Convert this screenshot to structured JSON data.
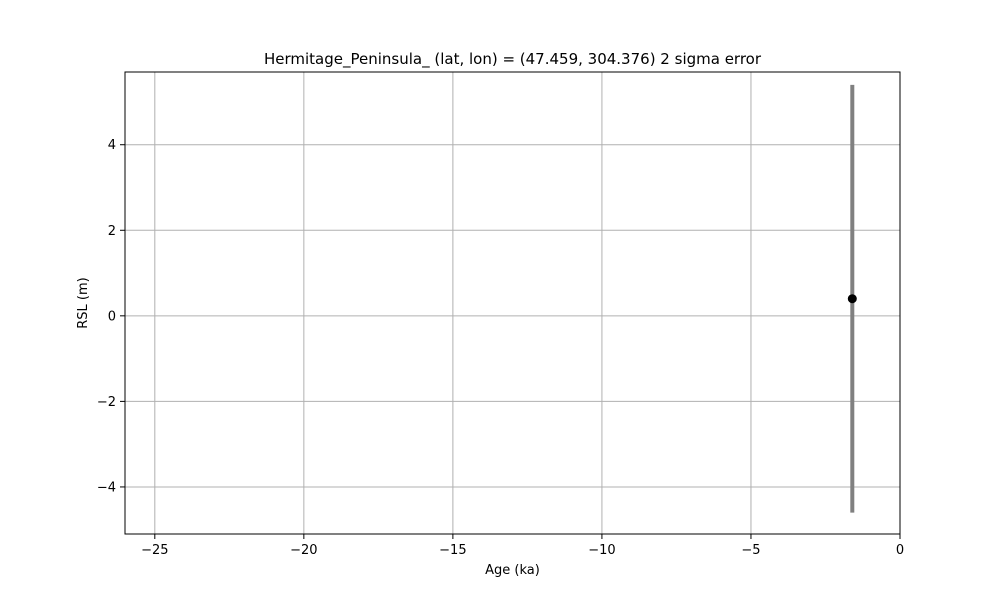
{
  "chart_data": {
    "type": "scatter",
    "title": "Hermitage_Peninsula_ (lat, lon) = (47.459, 304.376)  2 sigma error",
    "xlabel": "Age (ka)",
    "ylabel": "RSL (m)",
    "xlim": [
      -26,
      0
    ],
    "ylim": [
      -5.1,
      5.7
    ],
    "xticks": [
      -25,
      -20,
      -15,
      -10,
      -5,
      0
    ],
    "xtick_labels": [
      "−25",
      "−20",
      "−15",
      "−10",
      "−5",
      "0"
    ],
    "yticks": [
      -4,
      -2,
      0,
      2,
      4
    ],
    "ytick_labels": [
      "−4",
      "−2",
      "0",
      "2",
      "4"
    ],
    "grid": true,
    "legend": "none",
    "series": [
      {
        "points": [
          {
            "x": -1.6,
            "y": 0.4,
            "yerr": 5.0
          }
        ],
        "marker_color": "#000000",
        "errorbar_color": "#808080"
      }
    ],
    "colors": {
      "grid": "#b0b0b0",
      "axes": "#000000"
    }
  }
}
